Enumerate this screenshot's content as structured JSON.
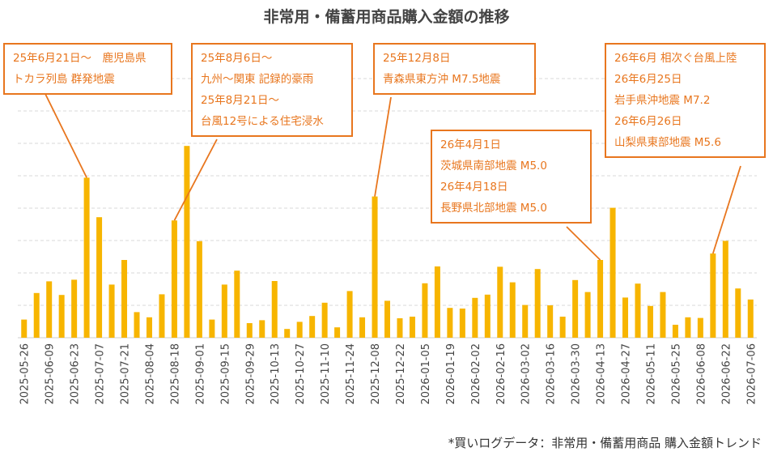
{
  "chart_data": {
    "type": "bar",
    "title": "非常用・備蓄用商品購入金額の推移",
    "color": "#F7B500",
    "accent": "#E8761E",
    "grid": "horizontal-dashed",
    "ylim": [
      0,
      100
    ],
    "categories": [
      "2025-05-26",
      "2025-06-02",
      "2025-06-09",
      "2025-06-16",
      "2025-06-23",
      "2025-06-30",
      "2025-07-07",
      "2025-07-14",
      "2025-07-21",
      "2025-07-28",
      "2025-08-04",
      "2025-08-11",
      "2025-08-18",
      "2025-08-25",
      "2025-09-01",
      "2025-09-08",
      "2025-09-15",
      "2025-09-22",
      "2025-09-29",
      "2025-10-06",
      "2025-10-13",
      "2025-10-20",
      "2025-10-27",
      "2025-11-03",
      "2025-11-10",
      "2025-11-17",
      "2025-11-24",
      "2025-12-01",
      "2025-12-08",
      "2025-12-15",
      "2025-12-22",
      "2025-12-29",
      "2026-01-05",
      "2026-01-12",
      "2026-01-19",
      "2026-01-26",
      "2026-02-02",
      "2026-02-09",
      "2026-02-16",
      "2026-02-23",
      "2026-03-02",
      "2026-03-09",
      "2026-03-16",
      "2026-03-23",
      "2026-03-30",
      "2026-04-06",
      "2026-04-13",
      "2026-04-20",
      "2026-04-27",
      "2026-05-04",
      "2026-05-11",
      "2026-05-18",
      "2026-05-25",
      "2026-06-01",
      "2026-06-08",
      "2026-06-15",
      "2026-06-22",
      "2026-06-29",
      "2026-07-06"
    ],
    "tick_labels": [
      "2025-05-26",
      "2025-06-09",
      "2025-06-23",
      "2025-07-07",
      "2025-07-21",
      "2025-08-04",
      "2025-08-18",
      "2025-09-01",
      "2025-09-15",
      "2025-09-29",
      "2025-10-13",
      "2025-10-27",
      "2025-11-10",
      "2025-11-24",
      "2025-12-08",
      "2025-12-22",
      "2026-01-05",
      "2026-01-19",
      "2026-02-02",
      "2026-02-16",
      "2026-03-02",
      "2026-03-16",
      "2026-03-30",
      "2026-04-13",
      "2026-04-27",
      "2026-05-11",
      "2026-05-25",
      "2026-06-08",
      "2026-06-22",
      "2026-07-06"
    ],
    "values": [
      5.6,
      13.8,
      17.4,
      13.2,
      17.9,
      49.4,
      37.2,
      16.4,
      24.0,
      7.9,
      6.3,
      13.4,
      36.2,
      59.2,
      29.8,
      5.6,
      16.4,
      20.7,
      4.5,
      5.4,
      17.5,
      2.7,
      4.9,
      6.7,
      10.8,
      3.2,
      14.4,
      6.3,
      43.6,
      11.4,
      6.0,
      6.5,
      16.8,
      22.0,
      9.2,
      9.0,
      12.3,
      13.3,
      21.9,
      17.1,
      10.1,
      21.2,
      10.0,
      6.5,
      17.8,
      14.1,
      24.0,
      40.1,
      12.4,
      16.7,
      9.8,
      14.1,
      4.0,
      6.3,
      6.1,
      26.0,
      29.9,
      15.2,
      11.8
    ]
  },
  "annotations": [
    {
      "lines": [
        "25年6月21日～　鹿児島県",
        "トカラ列島 群発地震"
      ]
    },
    {
      "lines": [
        "25年8月6日～",
        "九州～関東 記録的豪雨",
        "25年8月21日～",
        "台風12号による住宅浸水"
      ]
    },
    {
      "lines": [
        "25年12月8日",
        "青森県東方沖 M7.5地震"
      ]
    },
    {
      "lines": [
        "26年4月1日",
        "茨城県南部地震 M5.0",
        "26年4月18日",
        "長野県北部地震 M5.0"
      ]
    },
    {
      "lines": [
        "26年6月 相次ぐ台風上陸",
        "26年6月25日",
        "岩手県沖地震 M7.2",
        "26年6月26日",
        "山梨県東部地震 M5.6"
      ]
    }
  ],
  "footnote": "*買いログデータ：非常用・備蓄用商品 購入金額トレンド"
}
